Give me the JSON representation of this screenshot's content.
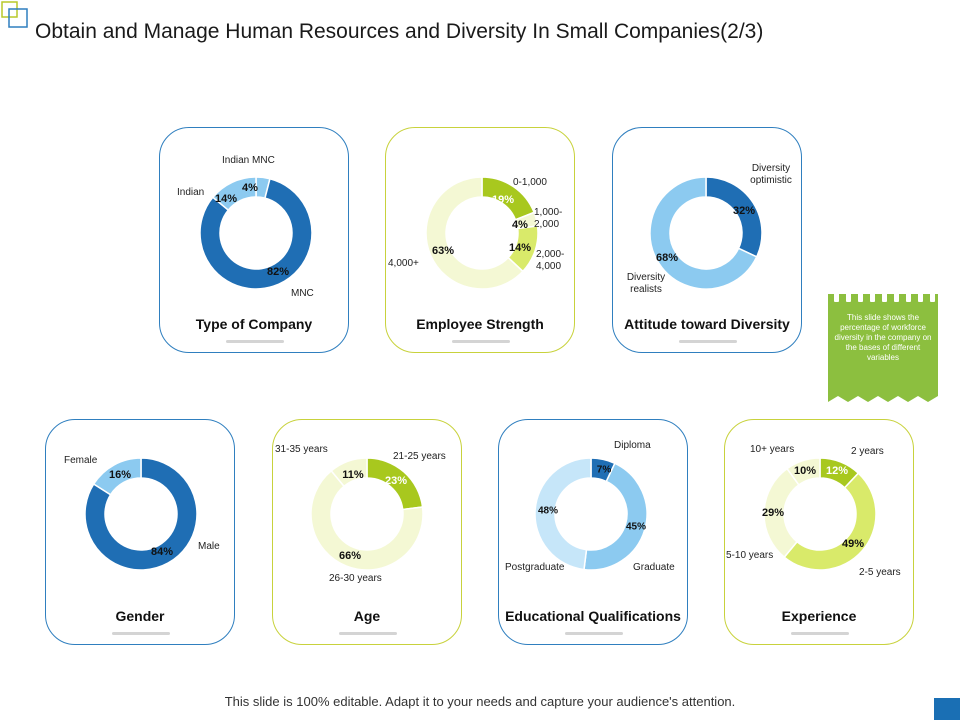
{
  "title": "Obtain and Manage Human Resources and Diversity In Small Companies(2/3)",
  "footer": "This slide is 100% editable. Adapt it to your needs and capture your audience's attention.",
  "note": "This slide shows the percentage of workforce diversity in the company on the bases of different variables",
  "colors": {
    "blue_dark": "#1f6eb4",
    "blue_light": "#8ccaf0",
    "green_dark": "#a8c81e",
    "green_mid": "#d9ea6a",
    "green_light": "#f4f8d4",
    "border_blue": "#2f7fbf",
    "border_green": "#c8d23c"
  },
  "chart_data": [
    {
      "id": "type-of-company",
      "type": "pie",
      "title": "Type of Company",
      "slices": [
        {
          "label": "Indian MNC",
          "value": 4,
          "display": "4%"
        },
        {
          "label": "MNC",
          "value": 82,
          "display": "82%"
        },
        {
          "label": "Indian",
          "value": 14,
          "display": "14%"
        }
      ]
    },
    {
      "id": "employee-strength",
      "type": "pie",
      "title": "Employee Strength",
      "slices": [
        {
          "label": "0-1,000",
          "value": 19,
          "display": "19%"
        },
        {
          "label": "1,000-2,000",
          "value": 4,
          "display": "4%"
        },
        {
          "label": "2,000-4,000",
          "value": 14,
          "display": "14%"
        },
        {
          "label": "4,000+",
          "value": 63,
          "display": "63%"
        }
      ]
    },
    {
      "id": "attitude-toward-diversity",
      "type": "pie",
      "title": "Attitude toward Diversity",
      "slices": [
        {
          "label": "Diversity optimistic",
          "value": 32,
          "display": "32%"
        },
        {
          "label": "Diversity realists",
          "value": 68,
          "display": "68%"
        }
      ]
    },
    {
      "id": "gender",
      "type": "pie",
      "title": "Gender",
      "slices": [
        {
          "label": "Male",
          "value": 84,
          "display": "84%"
        },
        {
          "label": "Female",
          "value": 16,
          "display": "16%"
        }
      ]
    },
    {
      "id": "age",
      "type": "pie",
      "title": "Age",
      "slices": [
        {
          "label": "21-25 years",
          "value": 23,
          "display": "23%"
        },
        {
          "label": "26-30 years",
          "value": 66,
          "display": "66%"
        },
        {
          "label": "31-35 years",
          "value": 11,
          "display": "11%"
        }
      ]
    },
    {
      "id": "educational-qualifications",
      "type": "pie",
      "title": "Educational Qualifications",
      "slices": [
        {
          "label": "Diploma",
          "value": 7,
          "display": "7%"
        },
        {
          "label": "Graduate",
          "value": 45,
          "display": "45%"
        },
        {
          "label": "Postgraduate",
          "value": 48,
          "display": "48%"
        }
      ]
    },
    {
      "id": "experience",
      "type": "pie",
      "title": "Experience",
      "slices": [
        {
          "label": "2 years",
          "value": 12,
          "display": "12%"
        },
        {
          "label": "2-5 years",
          "value": 49,
          "display": "49%"
        },
        {
          "label": "5-10 years",
          "value": 29,
          "display": "29%"
        },
        {
          "label": "10+ years",
          "value": 10,
          "display": "10%"
        }
      ]
    }
  ]
}
